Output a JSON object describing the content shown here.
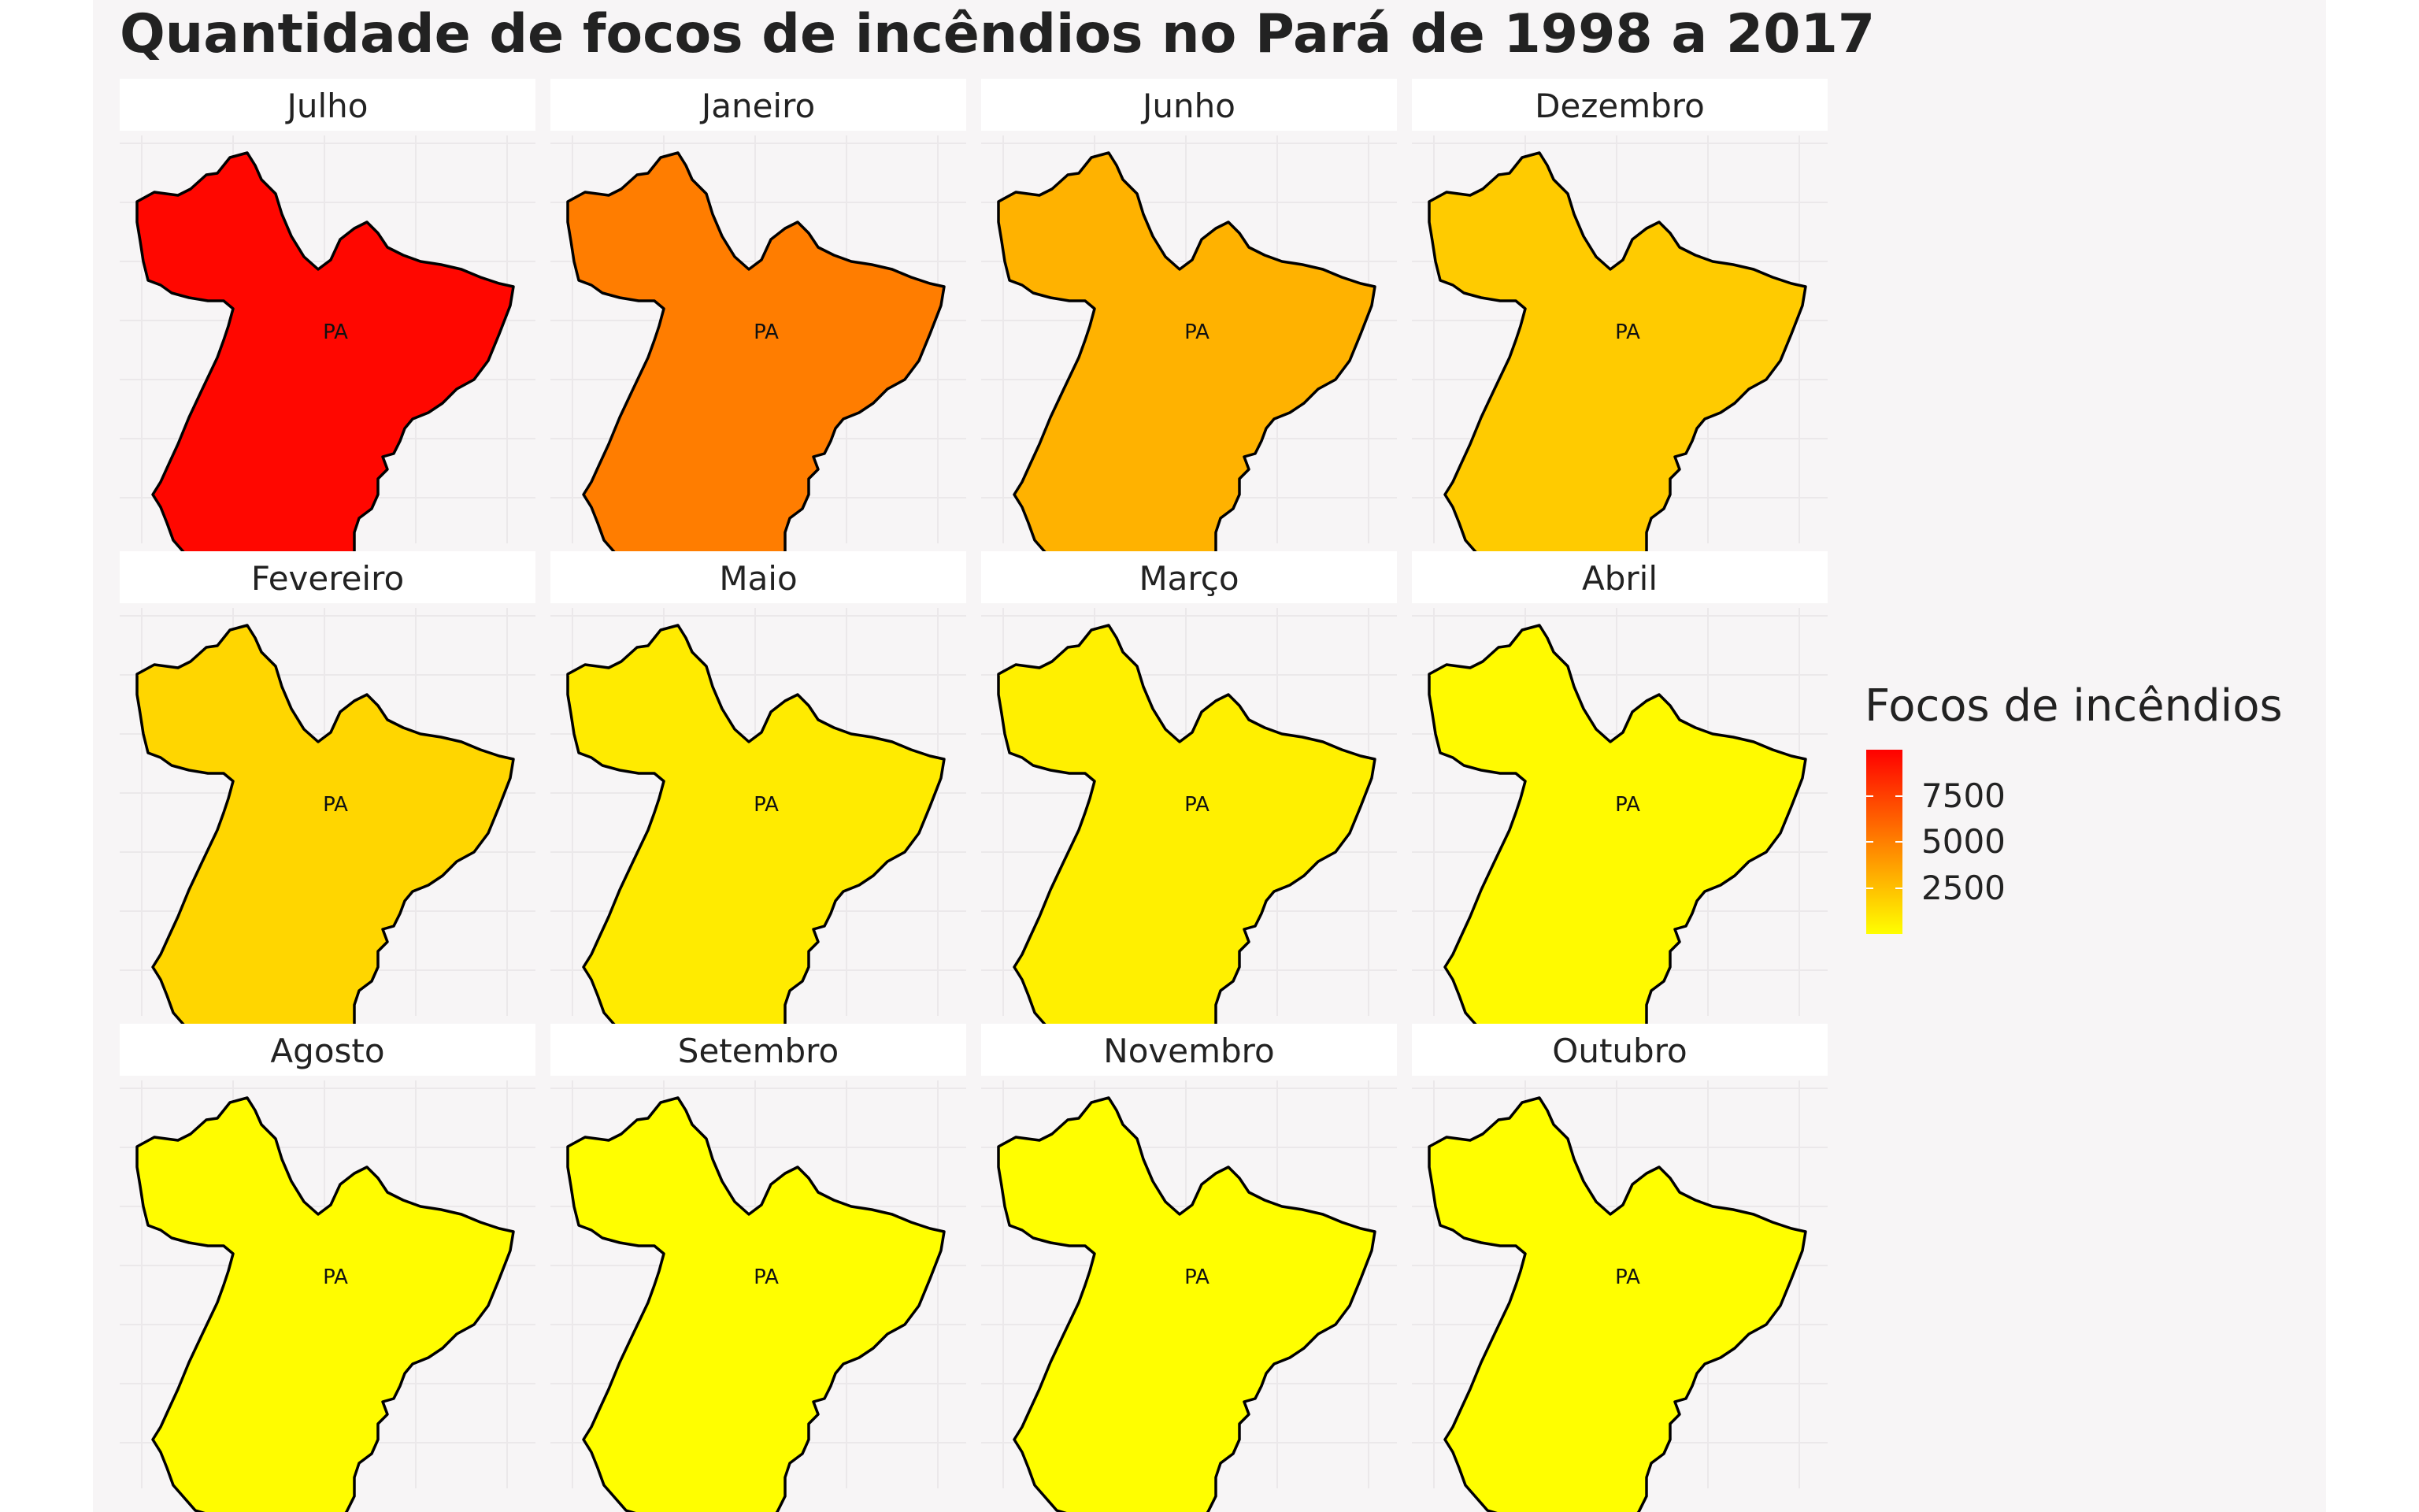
{
  "chart_data": {
    "type": "choropleth-facets",
    "title": "Quantidade de focos de incêndios no Pará de 1998 a 2017",
    "region_label": "PA",
    "facet_layout": {
      "rows": 3,
      "cols": 4
    },
    "facets": [
      {
        "month": "Julho",
        "value": 9800
      },
      {
        "month": "Janeiro",
        "value": 6200
      },
      {
        "month": "Junho",
        "value": 4300
      },
      {
        "month": "Dezembro",
        "value": 2900
      },
      {
        "month": "Fevereiro",
        "value": 2300
      },
      {
        "month": "Maio",
        "value": 1100
      },
      {
        "month": "Março",
        "value": 850
      },
      {
        "month": "Abril",
        "value": 300
      },
      {
        "month": "Agosto",
        "value": 180
      },
      {
        "month": "Setembro",
        "value": 60
      },
      {
        "month": "Novembro",
        "value": 70
      },
      {
        "month": "Outubro",
        "value": 40
      }
    ],
    "legend": {
      "title": "Focos de incêndios",
      "ticks": [
        7500,
        5000,
        2500
      ],
      "range": [
        0,
        10000
      ],
      "colors": {
        "low": "#ffff00",
        "mid": "#ffa500",
        "high": "#ff0000"
      }
    },
    "grid": true
  }
}
